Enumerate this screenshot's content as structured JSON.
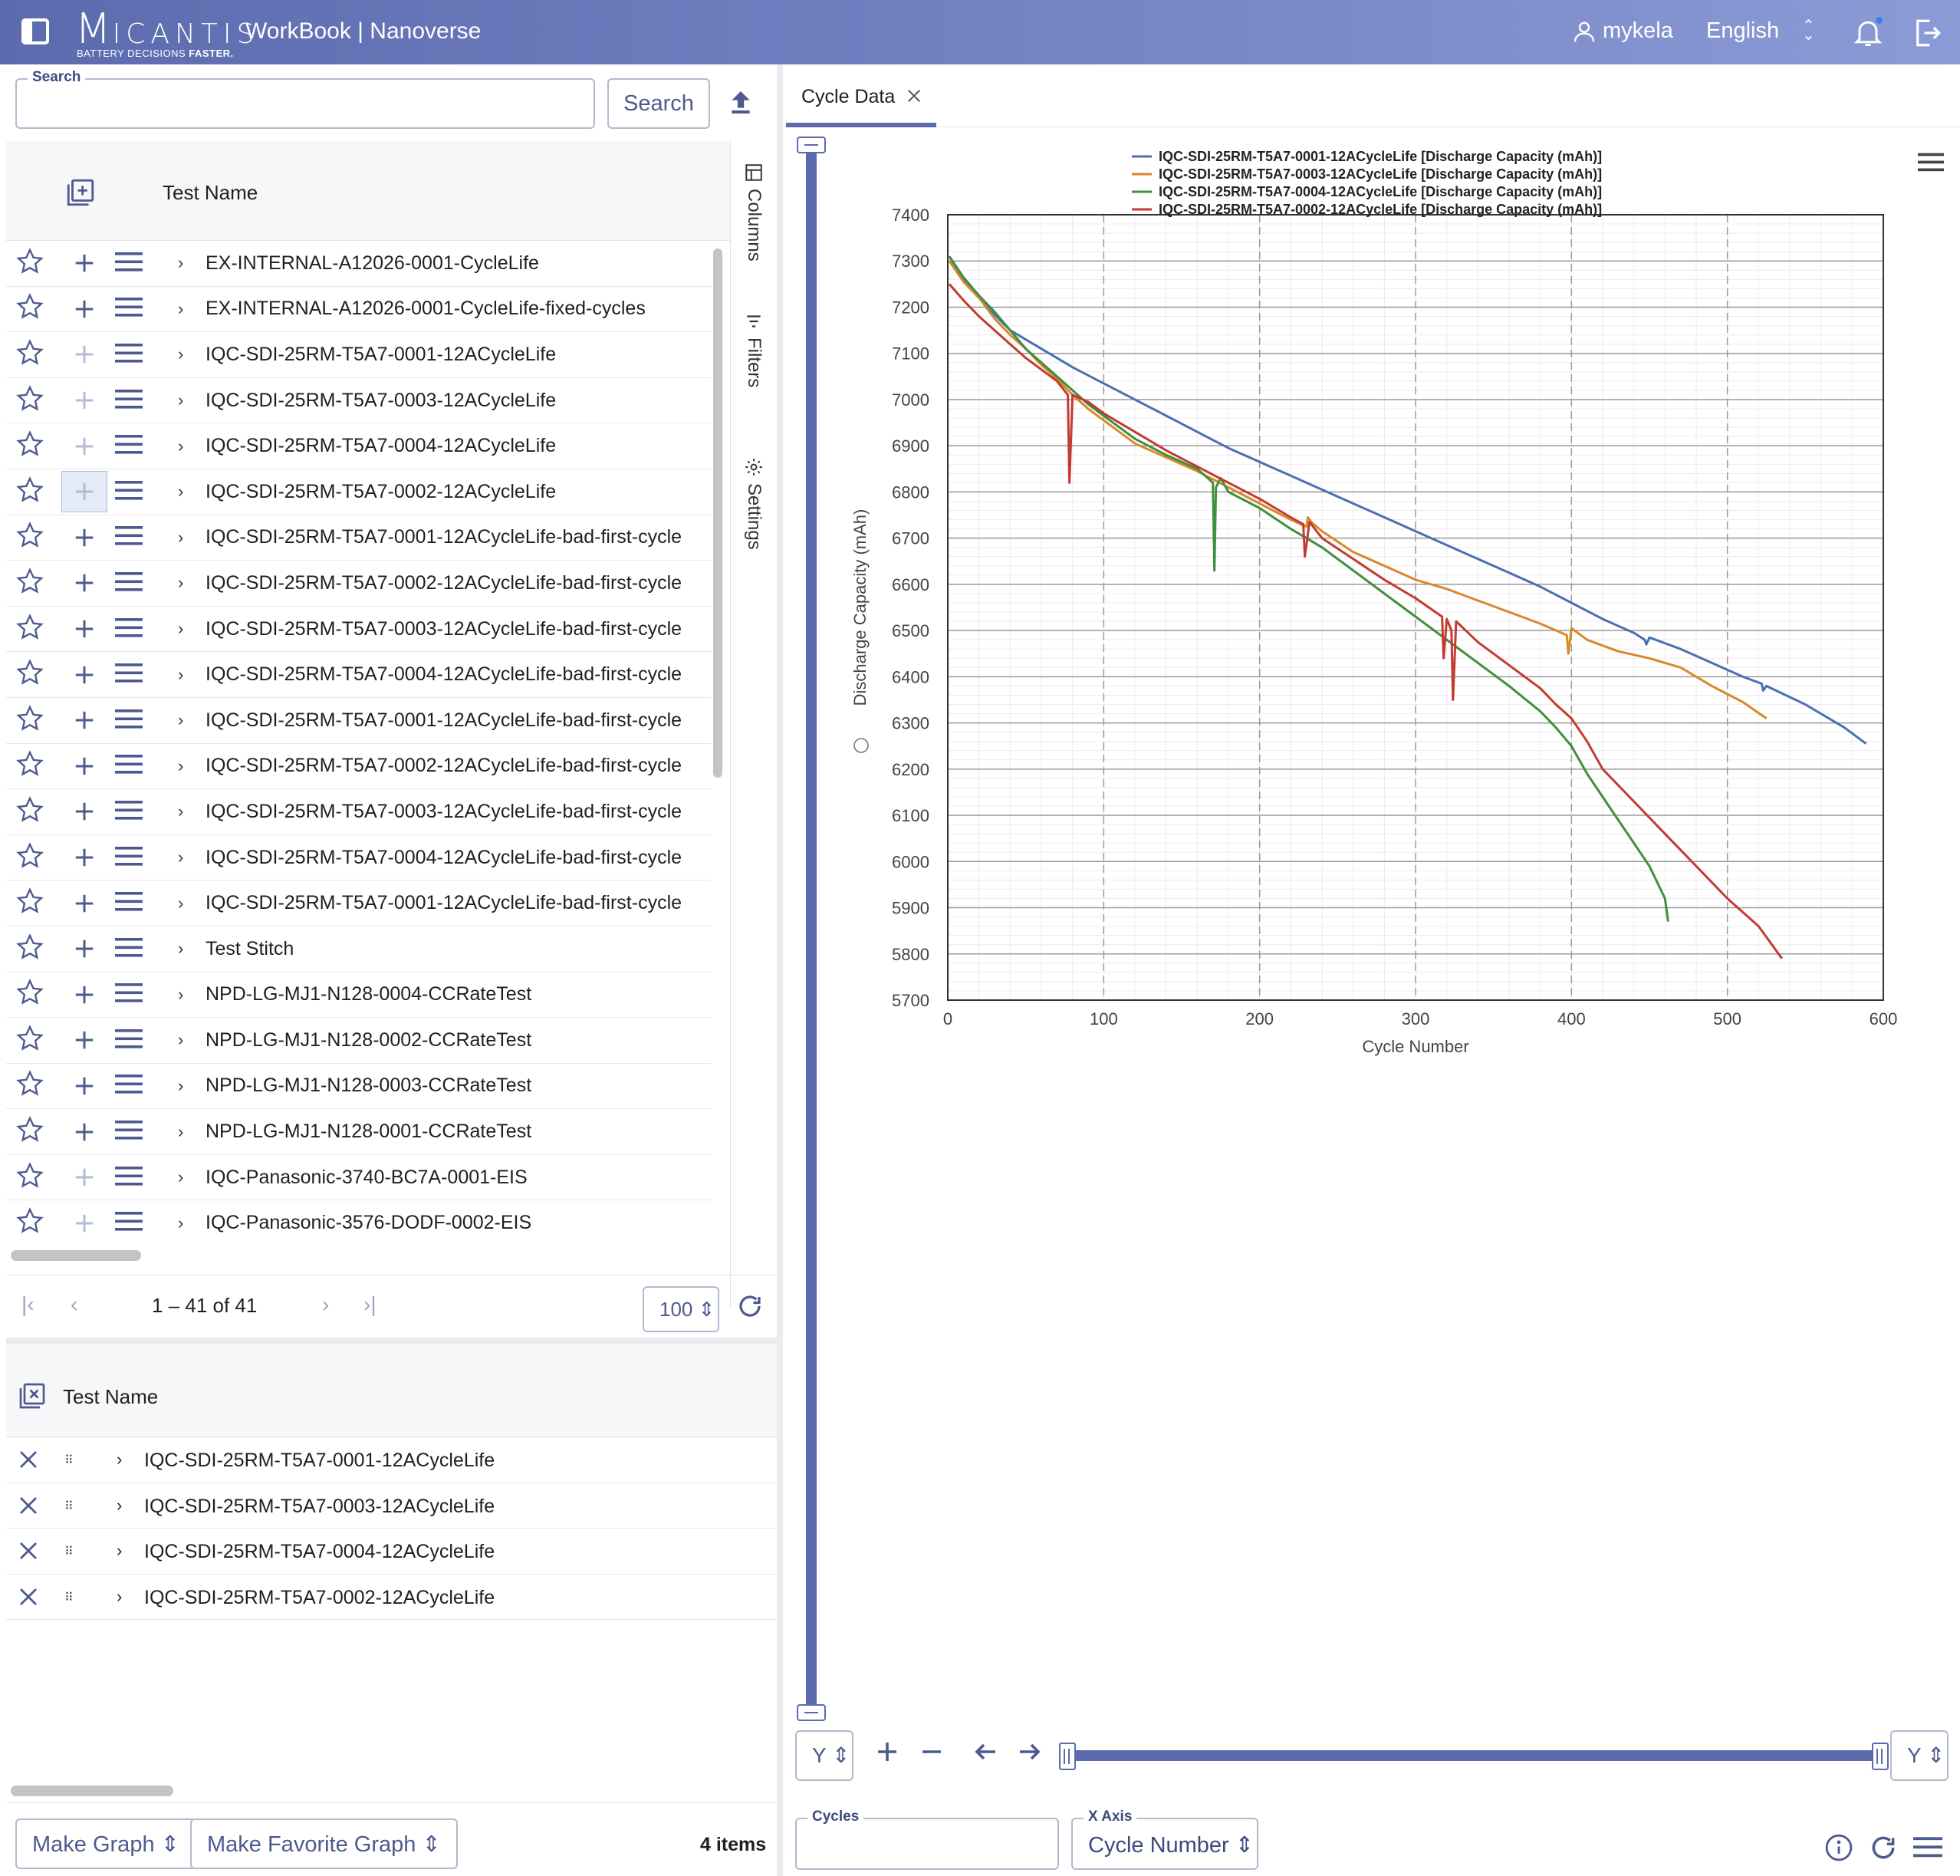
{
  "header": {
    "logo_initial": "M",
    "logo_rest": "ICANTIS",
    "tagline_start": "BATTERY DECISIONS ",
    "tagline_bold": "FASTER.",
    "app_title": "WorkBook | Nanoverse",
    "user": "mykela",
    "language": "English"
  },
  "search": {
    "label": "Search",
    "value": "",
    "button": "Search"
  },
  "grid": {
    "column": "Test Name",
    "side_tabs": [
      "Columns",
      "Filters",
      "Settings"
    ],
    "rows": [
      {
        "name": "EX-INTERNAL-A12026-0001-CycleLife",
        "plus_dim": false
      },
      {
        "name": "EX-INTERNAL-A12026-0001-CycleLife-fixed-cycles",
        "plus_dim": false
      },
      {
        "name": "IQC-SDI-25RM-T5A7-0001-12ACycleLife",
        "plus_dim": true
      },
      {
        "name": "IQC-SDI-25RM-T5A7-0003-12ACycleLife",
        "plus_dim": true
      },
      {
        "name": "IQC-SDI-25RM-T5A7-0004-12ACycleLife",
        "plus_dim": true
      },
      {
        "name": "IQC-SDI-25RM-T5A7-0002-12ACycleLife",
        "plus_dim": true,
        "highlight": true
      },
      {
        "name": "IQC-SDI-25RM-T5A7-0001-12ACycleLife-bad-first-cycle",
        "plus_dim": false
      },
      {
        "name": "IQC-SDI-25RM-T5A7-0002-12ACycleLife-bad-first-cycle",
        "plus_dim": false
      },
      {
        "name": "IQC-SDI-25RM-T5A7-0003-12ACycleLife-bad-first-cycle",
        "plus_dim": false
      },
      {
        "name": "IQC-SDI-25RM-T5A7-0004-12ACycleLife-bad-first-cycle",
        "plus_dim": false
      },
      {
        "name": "IQC-SDI-25RM-T5A7-0001-12ACycleLife-bad-first-cycle",
        "plus_dim": false
      },
      {
        "name": "IQC-SDI-25RM-T5A7-0002-12ACycleLife-bad-first-cycle",
        "plus_dim": false
      },
      {
        "name": "IQC-SDI-25RM-T5A7-0003-12ACycleLife-bad-first-cycle",
        "plus_dim": false
      },
      {
        "name": "IQC-SDI-25RM-T5A7-0004-12ACycleLife-bad-first-cycle",
        "plus_dim": false
      },
      {
        "name": "IQC-SDI-25RM-T5A7-0001-12ACycleLife-bad-first-cycle",
        "plus_dim": false
      },
      {
        "name": "Test Stitch",
        "plus_dim": false
      },
      {
        "name": "NPD-LG-MJ1-N128-0004-CCRateTest",
        "plus_dim": false
      },
      {
        "name": "NPD-LG-MJ1-N128-0002-CCRateTest",
        "plus_dim": false
      },
      {
        "name": "NPD-LG-MJ1-N128-0003-CCRateTest",
        "plus_dim": false
      },
      {
        "name": "NPD-LG-MJ1-N128-0001-CCRateTest",
        "plus_dim": false
      },
      {
        "name": "IQC-Panasonic-3740-BC7A-0001-EIS",
        "plus_dim": true
      },
      {
        "name": "IQC-Panasonic-3576-DODF-0002-EIS",
        "plus_dim": true
      }
    ]
  },
  "pager": {
    "range": "1 – 41 of 41",
    "page_size": "100"
  },
  "selected": {
    "column": "Test Name",
    "rows": [
      "IQC-SDI-25RM-T5A7-0001-12ACycleLife",
      "IQC-SDI-25RM-T5A7-0003-12ACycleLife",
      "IQC-SDI-25RM-T5A7-0004-12ACycleLife",
      "IQC-SDI-25RM-T5A7-0002-12ACycleLife"
    ]
  },
  "footer": {
    "make_graph": "Make Graph",
    "make_favorite_graph": "Make Favorite Graph",
    "items": "4 items"
  },
  "tab": {
    "label": "Cycle Data"
  },
  "controls": {
    "y_left": "Y",
    "y_right": "Y",
    "cycles_label": "Cycles",
    "cycles_value": "",
    "xaxis_label": "X Axis",
    "xaxis_value": "Cycle Number"
  },
  "chart_data": {
    "type": "line",
    "xlabel": "Cycle Number",
    "ylabel": "Discharge Capacity (mAh)",
    "xlim": [
      0,
      600
    ],
    "ylim": [
      5700,
      7400
    ],
    "xticks": [
      0,
      100,
      200,
      300,
      400,
      500,
      600
    ],
    "yticks": [
      5700,
      5800,
      5900,
      6000,
      6100,
      6200,
      6300,
      6400,
      6500,
      6600,
      6700,
      6800,
      6900,
      7000,
      7100,
      7200,
      7300,
      7400
    ],
    "grid": true,
    "legend": "top-center",
    "series": [
      {
        "name": "IQC-SDI-25RM-T5A7-0001-12ACycleLife [Discharge Capacity (mAh)]",
        "color": "#4a6fb5",
        "x": [
          1,
          10,
          25,
          40,
          60,
          80,
          100,
          120,
          140,
          160,
          180,
          200,
          220,
          240,
          260,
          280,
          300,
          320,
          340,
          360,
          380,
          400,
          420,
          440,
          447,
          448,
          450,
          470,
          490,
          510,
          522,
          523,
          525,
          550,
          575,
          589
        ],
        "y": [
          7310,
          7260,
          7200,
          7150,
          7110,
          7070,
          7035,
          7000,
          6965,
          6930,
          6895,
          6865,
          6835,
          6805,
          6775,
          6745,
          6715,
          6685,
          6655,
          6625,
          6595,
          6560,
          6525,
          6495,
          6480,
          6470,
          6485,
          6460,
          6430,
          6400,
          6385,
          6370,
          6380,
          6340,
          6290,
          6255
        ]
      },
      {
        "name": "IQC-SDI-25RM-T5A7-0003-12ACycleLife [Discharge Capacity (mAh)]",
        "color": "#d9882a",
        "x": [
          1,
          10,
          20,
          30,
          40,
          50,
          60,
          70,
          80,
          90,
          100,
          110,
          120,
          140,
          160,
          180,
          200,
          220,
          230,
          231,
          233,
          240,
          260,
          280,
          300,
          320,
          340,
          360,
          380,
          397,
          398,
          400,
          410,
          430,
          450,
          470,
          490,
          510,
          525
        ],
        "y": [
          7300,
          7255,
          7220,
          7175,
          7140,
          7110,
          7075,
          7045,
          7010,
          6980,
          6955,
          6930,
          6905,
          6875,
          6845,
          6810,
          6775,
          6740,
          6725,
          6745,
          6735,
          6715,
          6670,
          6640,
          6610,
          6590,
          6565,
          6540,
          6515,
          6490,
          6450,
          6505,
          6480,
          6455,
          6440,
          6420,
          6380,
          6345,
          6310
        ]
      },
      {
        "name": "IQC-SDI-25RM-T5A7-0004-12ACycleLife [Discharge Capacity (mAh)]",
        "color": "#3f8f3f",
        "x": [
          1,
          10,
          20,
          30,
          40,
          50,
          60,
          70,
          80,
          90,
          100,
          110,
          120,
          140,
          160,
          170,
          171,
          172,
          175,
          180,
          200,
          220,
          240,
          260,
          280,
          300,
          320,
          340,
          360,
          380,
          390,
          400,
          410,
          420,
          430,
          440,
          450,
          460,
          462
        ],
        "y": [
          7310,
          7265,
          7225,
          7190,
          7150,
          7110,
          7080,
          7050,
          7020,
          6990,
          6965,
          6940,
          6915,
          6880,
          6850,
          6820,
          6630,
          6810,
          6830,
          6800,
          6765,
          6720,
          6680,
          6630,
          6580,
          6530,
          6480,
          6430,
          6380,
          6325,
          6290,
          6250,
          6190,
          6140,
          6090,
          6040,
          5990,
          5920,
          5870
        ]
      },
      {
        "name": "IQC-SDI-25RM-T5A7-0002-12ACycleLife [Discharge Capacity (mAh)]",
        "color": "#c33a32",
        "x": [
          1,
          10,
          20,
          30,
          40,
          50,
          60,
          70,
          77,
          78,
          80,
          90,
          100,
          120,
          140,
          160,
          180,
          200,
          220,
          228,
          229,
          232,
          240,
          260,
          280,
          300,
          317,
          318,
          320,
          323,
          324,
          326,
          340,
          360,
          380,
          390,
          400,
          410,
          420,
          440,
          460,
          480,
          500,
          520,
          535
        ],
        "y": [
          7250,
          7215,
          7180,
          7150,
          7120,
          7090,
          7065,
          7040,
          7010,
          6820,
          7010,
          6995,
          6970,
          6930,
          6890,
          6855,
          6820,
          6785,
          6745,
          6730,
          6660,
          6735,
          6700,
          6655,
          6610,
          6570,
          6530,
          6440,
          6525,
          6500,
          6350,
          6520,
          6475,
          6425,
          6375,
          6340,
          6310,
          6260,
          6200,
          6130,
          6060,
          5990,
          5920,
          5860,
          5790
        ]
      }
    ]
  }
}
